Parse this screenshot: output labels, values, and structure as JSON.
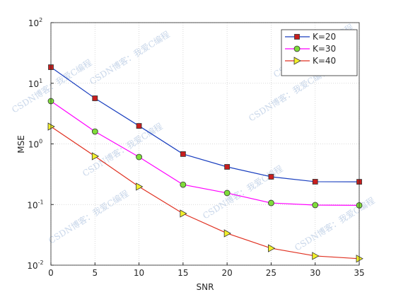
{
  "chart_data": {
    "type": "line",
    "x_label": "SNR",
    "y_label": "MSE",
    "x": [
      0,
      5,
      10,
      15,
      20,
      25,
      30,
      35
    ],
    "xlim": [
      0,
      35
    ],
    "xticks": [
      0,
      5,
      10,
      15,
      20,
      25,
      30,
      35
    ],
    "ylim": [
      0.01,
      100
    ],
    "log_y": true,
    "grid": true,
    "yticks": [
      {
        "value": 0.01,
        "label": "10",
        "exponent": "-2"
      },
      {
        "value": 0.1,
        "label": "10",
        "exponent": "-1"
      },
      {
        "value": 1,
        "label": "10",
        "exponent": "0"
      },
      {
        "value": 10,
        "label": "10",
        "exponent": "1"
      },
      {
        "value": 100,
        "label": "10",
        "exponent": "2"
      }
    ],
    "legend_position": "top-right",
    "watermark": "CSDN博客：我爱C编程",
    "series": [
      {
        "name": "K=20",
        "color": "#1a3fbf",
        "marker": "square",
        "marker_color": "#c81e1e",
        "values": [
          18.4,
          5.65,
          1.98,
          0.68,
          0.418,
          0.287,
          0.238,
          0.237
        ]
      },
      {
        "name": "K=30",
        "color": "#ff00ff",
        "marker": "circle",
        "marker_color": "#7fdc3a",
        "values": [
          5.08,
          1.6,
          0.608,
          0.213,
          0.155,
          0.106,
          0.098,
          0.097
        ]
      },
      {
        "name": "K=40",
        "color": "#e03020",
        "marker": "triangle-right",
        "marker_color": "#f2ef2a",
        "values": [
          1.93,
          0.625,
          0.197,
          0.071,
          0.0335,
          0.019,
          0.0142,
          0.0128
        ]
      }
    ]
  }
}
